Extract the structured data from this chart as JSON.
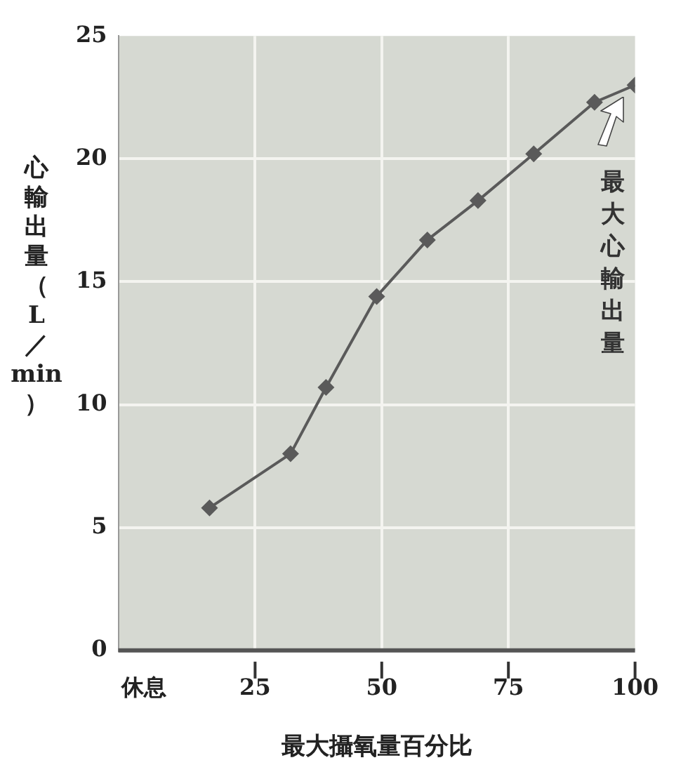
{
  "chart_data": {
    "type": "line",
    "xlabel": "最大攝氧量百分比",
    "ylabel": "心輸出量（L／min）",
    "x": [
      16,
      32,
      39,
      49,
      59,
      69,
      80,
      92,
      100
    ],
    "values": [
      5.8,
      8.0,
      10.7,
      14.4,
      16.7,
      18.3,
      20.2,
      22.3,
      23.0
    ],
    "color": "#5a5a5a",
    "marker": "diamond",
    "line_style": "solid",
    "grid": true,
    "xlim": [
      -2,
      100
    ],
    "xticks": [
      {
        "value": 3,
        "label": "休息"
      },
      25,
      50,
      75,
      100
    ],
    "ylim": [
      0,
      25
    ],
    "yticks": [
      0,
      5,
      10,
      15,
      20,
      25
    ],
    "annotations": [
      "最大心輸出量"
    ]
  }
}
